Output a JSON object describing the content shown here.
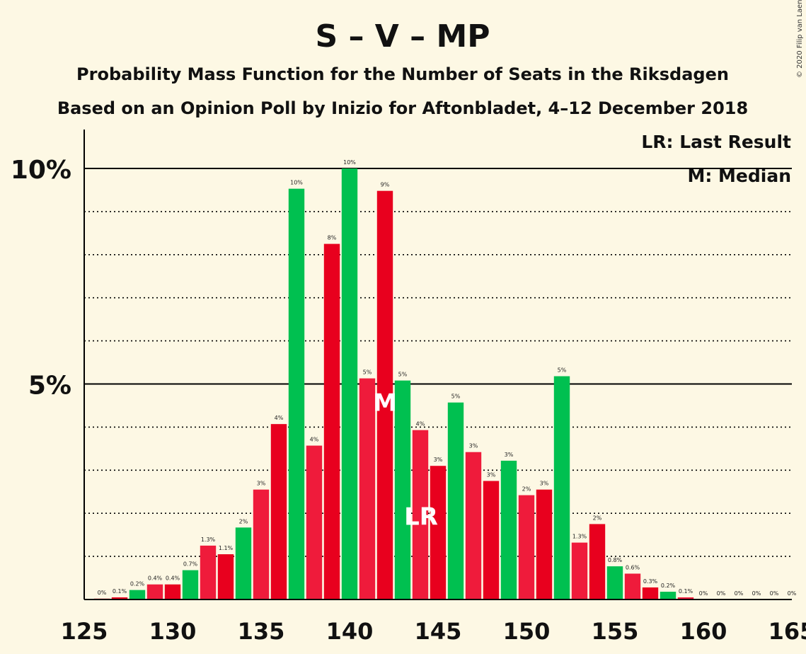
{
  "chart_data": {
    "type": "bar",
    "title": "S – V – MP",
    "subtitle1": "Probability Mass Function for the Number of Seats in the Riksdagen",
    "subtitle2": "Based on an Opinion Poll by Inizio for Aftonbladet, 4–12 December 2018",
    "copyright": "© 2020 Filip van Laenen",
    "legend": {
      "lr": "LR: Last Result",
      "m": "M: Median",
      "position": "top-right"
    },
    "y_ticks": [
      {
        "value": 5,
        "label": "5%"
      },
      {
        "value": 10,
        "label": "10%"
      }
    ],
    "x_ticks": [
      125,
      130,
      135,
      140,
      145,
      150,
      155,
      160,
      165
    ],
    "xlim": [
      125,
      165
    ],
    "ylim": [
      0,
      11
    ],
    "median_seat": 142,
    "median_marker": "M",
    "last_result_seat": 144,
    "last_result_marker": "LR",
    "colors": {
      "green": "#00c050",
      "red": "#e8001e",
      "pink": "#ef1b3b",
      "background": "#fdf8e4"
    },
    "bars": [
      {
        "seat": 126,
        "value": 0.02,
        "label": "0%",
        "color": "red"
      },
      {
        "seat": 127,
        "value": 0.05,
        "label": "0.1%",
        "color": "red"
      },
      {
        "seat": 128,
        "value": 0.22,
        "label": "0.2%",
        "color": "green"
      },
      {
        "seat": 129,
        "value": 0.35,
        "label": "0.4%",
        "color": "pink"
      },
      {
        "seat": 130,
        "value": 0.35,
        "label": "0.4%",
        "color": "red"
      },
      {
        "seat": 131,
        "value": 0.68,
        "label": "0.7%",
        "color": "green"
      },
      {
        "seat": 132,
        "value": 1.25,
        "label": "1.3%",
        "color": "pink"
      },
      {
        "seat": 133,
        "value": 1.05,
        "label": "1.1%",
        "color": "red"
      },
      {
        "seat": 134,
        "value": 1.67,
        "label": "2%",
        "color": "green"
      },
      {
        "seat": 135,
        "value": 2.55,
        "label": "3%",
        "color": "pink"
      },
      {
        "seat": 136,
        "value": 4.07,
        "label": "4%",
        "color": "red"
      },
      {
        "seat": 137,
        "value": 9.53,
        "label": "10%",
        "color": "green"
      },
      {
        "seat": 138,
        "value": 3.57,
        "label": "4%",
        "color": "pink"
      },
      {
        "seat": 139,
        "value": 8.25,
        "label": "8%",
        "color": "red"
      },
      {
        "seat": 140,
        "value": 10.0,
        "label": "10%",
        "color": "green"
      },
      {
        "seat": 141,
        "value": 5.13,
        "label": "5%",
        "color": "pink"
      },
      {
        "seat": 142,
        "value": 9.48,
        "label": "9%",
        "color": "red"
      },
      {
        "seat": 143,
        "value": 5.08,
        "label": "5%",
        "color": "green"
      },
      {
        "seat": 144,
        "value": 3.93,
        "label": "4%",
        "color": "pink"
      },
      {
        "seat": 145,
        "value": 3.1,
        "label": "3%",
        "color": "red"
      },
      {
        "seat": 146,
        "value": 4.57,
        "label": "5%",
        "color": "green"
      },
      {
        "seat": 147,
        "value": 3.42,
        "label": "3%",
        "color": "pink"
      },
      {
        "seat": 148,
        "value": 2.75,
        "label": "3%",
        "color": "red"
      },
      {
        "seat": 149,
        "value": 3.22,
        "label": "3%",
        "color": "green"
      },
      {
        "seat": 150,
        "value": 2.42,
        "label": "2%",
        "color": "pink"
      },
      {
        "seat": 151,
        "value": 2.55,
        "label": "3%",
        "color": "red"
      },
      {
        "seat": 152,
        "value": 5.18,
        "label": "5%",
        "color": "green"
      },
      {
        "seat": 153,
        "value": 1.32,
        "label": "1.3%",
        "color": "pink"
      },
      {
        "seat": 154,
        "value": 1.75,
        "label": "2%",
        "color": "red"
      },
      {
        "seat": 155,
        "value": 0.77,
        "label": "0.8%",
        "color": "green"
      },
      {
        "seat": 156,
        "value": 0.6,
        "label": "0.6%",
        "color": "pink"
      },
      {
        "seat": 157,
        "value": 0.28,
        "label": "0.3%",
        "color": "red"
      },
      {
        "seat": 158,
        "value": 0.18,
        "label": "0.2%",
        "color": "green"
      },
      {
        "seat": 159,
        "value": 0.05,
        "label": "0.1%",
        "color": "pink"
      },
      {
        "seat": 160,
        "value": 0,
        "label": "0%",
        "color": "red"
      },
      {
        "seat": 161,
        "value": 0,
        "label": "0%",
        "color": "green"
      },
      {
        "seat": 162,
        "value": 0,
        "label": "0%",
        "color": "pink"
      },
      {
        "seat": 163,
        "value": 0,
        "label": "0%",
        "color": "red"
      },
      {
        "seat": 164,
        "value": 0,
        "label": "0%",
        "color": "green"
      },
      {
        "seat": 165,
        "value": 0,
        "label": "0%",
        "color": "pink"
      }
    ]
  }
}
